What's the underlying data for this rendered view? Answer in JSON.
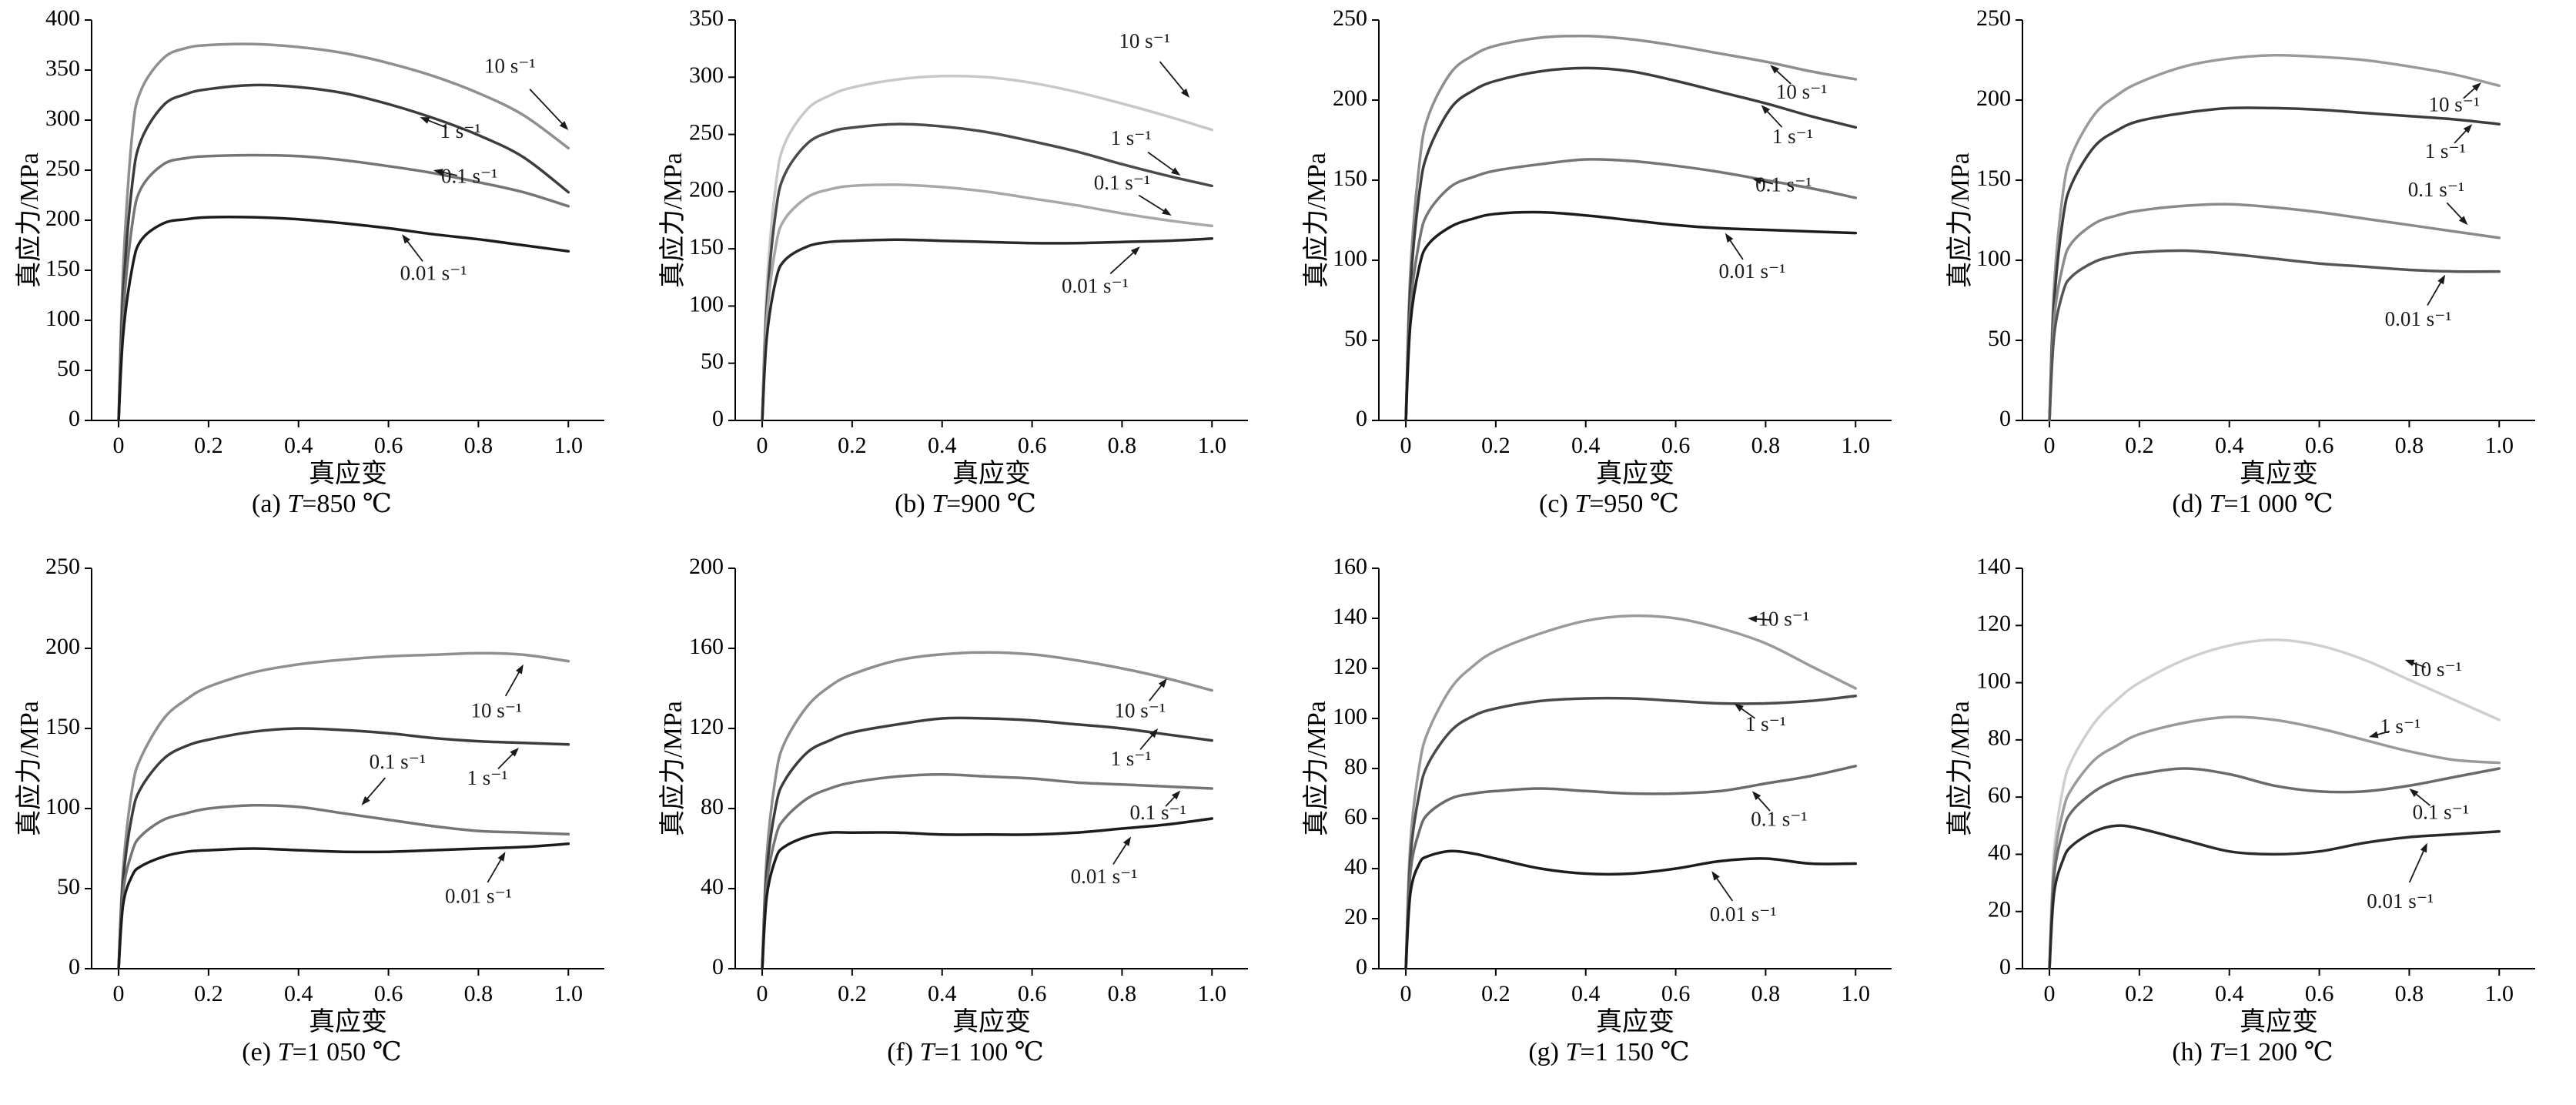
{
  "page": {
    "background": "#ffffff"
  },
  "shared": {
    "xlabel": "真应变",
    "ylabel": "真应力/MPa",
    "xlim": [
      -0.06,
      1.08
    ],
    "xticks": [
      0,
      0.2,
      0.4,
      0.6,
      0.8,
      1.0
    ],
    "xtick_labels": [
      "0",
      "0.2",
      "0.4",
      "0.6",
      "0.8",
      "1.0"
    ],
    "strain_x": [
      0,
      0.01,
      0.03,
      0.05,
      0.1,
      0.15,
      0.2,
      0.3,
      0.4,
      0.5,
      0.6,
      0.7,
      0.8,
      0.9,
      1.0
    ],
    "annotation_color": "#1a1a1a",
    "axis_color": "#000000"
  },
  "chart_data": [
    {
      "id": "a",
      "type": "line",
      "title": "(a) T=850 ℃",
      "caption_letter": "(a)",
      "caption_temp": "850",
      "caption_unit": "℃",
      "ylim": [
        0,
        400
      ],
      "ytick_step": 50,
      "series": [
        {
          "name": "10 s⁻¹",
          "color": "#8f8f8f",
          "y": [
            0,
            150,
            285,
            330,
            362,
            372,
            375,
            376,
            373,
            367,
            357,
            344,
            327,
            305,
            272
          ]
        },
        {
          "name": "1 s⁻¹",
          "color": "#3c3c3c",
          "y": [
            0,
            125,
            235,
            280,
            315,
            326,
            331,
            335,
            333,
            327,
            316,
            302,
            285,
            263,
            228
          ]
        },
        {
          "name": "0.1 s⁻¹",
          "color": "#757575",
          "y": [
            0,
            105,
            195,
            232,
            256,
            262,
            264,
            265,
            264,
            260,
            254,
            247,
            238,
            228,
            214
          ]
        },
        {
          "name": "0.01 s⁻¹",
          "color": "#1c1c1c",
          "y": [
            0,
            85,
            152,
            180,
            197,
            201,
            203,
            203,
            201,
            197,
            192,
            186,
            181,
            175,
            169
          ]
        }
      ],
      "annotations": [
        {
          "text": "10 s⁻¹",
          "tx": 0.87,
          "ty": 352,
          "ax": 1.0,
          "ay": 290
        },
        {
          "text": "1 s⁻¹",
          "tx": 0.76,
          "ty": 287,
          "ax": 0.67,
          "ay": 303
        },
        {
          "text": "0.1 s⁻¹",
          "tx": 0.78,
          "ty": 242,
          "ax": 0.7,
          "ay": 250
        },
        {
          "text": "0.01 s⁻¹",
          "tx": 0.7,
          "ty": 145,
          "ax": 0.63,
          "ay": 186
        }
      ]
    },
    {
      "id": "b",
      "type": "line",
      "title": "(b) T=900 ℃",
      "caption_letter": "(b)",
      "caption_temp": "900",
      "caption_unit": "℃",
      "ylim": [
        0,
        350
      ],
      "ytick_step": 50,
      "series": [
        {
          "name": "10 s⁻¹",
          "color": "#c8c8c8",
          "y": [
            0,
            115,
            205,
            242,
            272,
            284,
            291,
            298,
            301,
            300,
            295,
            287,
            277,
            266,
            254
          ]
        },
        {
          "name": "1 s⁻¹",
          "color": "#4a4a4a",
          "y": [
            0,
            100,
            182,
            215,
            242,
            252,
            256,
            259,
            257,
            252,
            244,
            235,
            224,
            214,
            205
          ]
        },
        {
          "name": "0.1 s⁻¹",
          "color": "#a8a8a8",
          "y": [
            0,
            88,
            152,
            176,
            195,
            202,
            205,
            206,
            204,
            200,
            194,
            188,
            181,
            175,
            170
          ]
        },
        {
          "name": "0.01 s⁻¹",
          "color": "#2a2a2a",
          "y": [
            0,
            72,
            122,
            140,
            152,
            156,
            157,
            158,
            157,
            156,
            155,
            155,
            156,
            157,
            159
          ]
        }
      ],
      "annotations": [
        {
          "text": "10 s⁻¹",
          "tx": 0.85,
          "ty": 330,
          "ax": 0.95,
          "ay": 282
        },
        {
          "text": "1 s⁻¹",
          "tx": 0.82,
          "ty": 245,
          "ax": 0.93,
          "ay": 214
        },
        {
          "text": "0.1 s⁻¹",
          "tx": 0.8,
          "ty": 206,
          "ax": 0.91,
          "ay": 179
        },
        {
          "text": "0.01 s⁻¹",
          "tx": 0.74,
          "ty": 116,
          "ax": 0.84,
          "ay": 152
        }
      ]
    },
    {
      "id": "c",
      "type": "line",
      "title": "(c) T=950 ℃",
      "caption_letter": "(c)",
      "caption_temp": "950",
      "caption_unit": "℃",
      "ylim": [
        0,
        250
      ],
      "ytick_step": 50,
      "series": [
        {
          "name": "10 s⁻¹",
          "color": "#8f8f8f",
          "y": [
            0,
            92,
            160,
            190,
            217,
            228,
            234,
            239,
            240,
            238,
            234,
            229,
            224,
            218,
            213
          ]
        },
        {
          "name": "1 s⁻¹",
          "color": "#3c3c3c",
          "y": [
            0,
            82,
            142,
            168,
            195,
            206,
            212,
            218,
            220,
            218,
            212,
            205,
            198,
            190,
            183
          ]
        },
        {
          "name": "0.1 s⁻¹",
          "color": "#757575",
          "y": [
            0,
            70,
            112,
            130,
            146,
            152,
            156,
            160,
            163,
            162,
            159,
            155,
            150,
            145,
            139
          ]
        },
        {
          "name": "0.01 s⁻¹",
          "color": "#1c1c1c",
          "y": [
            0,
            60,
            96,
            110,
            121,
            126,
            129,
            130,
            128,
            125,
            122,
            120,
            119,
            118,
            117
          ]
        }
      ],
      "annotations": [
        {
          "text": "10 s⁻¹",
          "tx": 0.88,
          "ty": 204,
          "ax": 0.81,
          "ay": 222
        },
        {
          "text": "1 s⁻¹",
          "tx": 0.86,
          "ty": 176,
          "ax": 0.79,
          "ay": 197
        },
        {
          "text": "0.1 s⁻¹",
          "tx": 0.84,
          "ty": 146,
          "ax": 0.77,
          "ay": 151
        },
        {
          "text": "0.01 s⁻¹",
          "tx": 0.77,
          "ty": 92,
          "ax": 0.71,
          "ay": 117
        }
      ]
    },
    {
      "id": "d",
      "type": "line",
      "title": "(d) T=1 000 ℃",
      "caption_letter": "(d)",
      "caption_temp": "1 000",
      "caption_unit": "℃",
      "ylim": [
        0,
        250
      ],
      "ytick_step": 50,
      "series": [
        {
          "name": "10 s⁻¹",
          "color": "#9a9a9a",
          "y": [
            0,
            82,
            142,
            166,
            191,
            203,
            211,
            221,
            226,
            228,
            227,
            225,
            221,
            216,
            209
          ]
        },
        {
          "name": "1 s⁻¹",
          "color": "#3c3c3c",
          "y": [
            0,
            72,
            126,
            148,
            171,
            181,
            187,
            192,
            195,
            195,
            194,
            192,
            190,
            188,
            185
          ]
        },
        {
          "name": "0.1 s⁻¹",
          "color": "#8a8a8a",
          "y": [
            0,
            62,
            97,
            111,
            123,
            128,
            131,
            134,
            135,
            133,
            130,
            126,
            122,
            118,
            114
          ]
        },
        {
          "name": "0.01 s⁻¹",
          "color": "#555555",
          "y": [
            0,
            52,
            80,
            90,
            99,
            103,
            105,
            106,
            104,
            101,
            98,
            96,
            94,
            93,
            93
          ]
        }
      ],
      "annotations": [
        {
          "text": "10 s⁻¹",
          "tx": 0.9,
          "ty": 196,
          "ax": 0.96,
          "ay": 211
        },
        {
          "text": "1 s⁻¹",
          "tx": 0.88,
          "ty": 167,
          "ax": 0.94,
          "ay": 185
        },
        {
          "text": "0.1 s⁻¹",
          "tx": 0.86,
          "ty": 143,
          "ax": 0.93,
          "ay": 122
        },
        {
          "text": "0.01 s⁻¹",
          "tx": 0.82,
          "ty": 62,
          "ax": 0.88,
          "ay": 91
        }
      ]
    },
    {
      "id": "e",
      "type": "line",
      "title": "(e) T=1 050 ℃",
      "caption_letter": "(e)",
      "caption_temp": "1 050",
      "caption_unit": "℃",
      "ylim": [
        0,
        250
      ],
      "ytick_step": 50,
      "series": [
        {
          "name": "10 s⁻¹",
          "color": "#8f8f8f",
          "y": [
            0,
            62,
            112,
            132,
            156,
            168,
            176,
            185,
            190,
            193,
            195,
            196,
            197,
            196,
            192
          ]
        },
        {
          "name": "1 s⁻¹",
          "color": "#3c3c3c",
          "y": [
            0,
            55,
            96,
            113,
            131,
            139,
            143,
            148,
            150,
            149,
            147,
            144,
            142,
            141,
            140
          ]
        },
        {
          "name": "0.1 s⁻¹",
          "color": "#757575",
          "y": [
            0,
            48,
            73,
            83,
            93,
            97,
            100,
            102,
            101,
            97,
            93,
            89,
            86,
            85,
            84
          ]
        },
        {
          "name": "0.01 s⁻¹",
          "color": "#1c1c1c",
          "y": [
            0,
            40,
            58,
            64,
            70,
            73,
            74,
            75,
            74,
            73,
            73,
            74,
            75,
            76,
            78
          ]
        }
      ],
      "annotations": [
        {
          "text": "10 s⁻¹",
          "tx": 0.84,
          "ty": 160,
          "ax": 0.9,
          "ay": 190
        },
        {
          "text": "1 s⁻¹",
          "tx": 0.82,
          "ty": 118,
          "ax": 0.89,
          "ay": 138
        },
        {
          "text": "0.1 s⁻¹",
          "tx": 0.62,
          "ty": 128,
          "ax": 0.54,
          "ay": 102
        },
        {
          "text": "0.01 s⁻¹",
          "tx": 0.8,
          "ty": 44,
          "ax": 0.86,
          "ay": 73
        }
      ]
    },
    {
      "id": "f",
      "type": "line",
      "title": "(f) T=1 100 ℃",
      "caption_letter": "(f)",
      "caption_temp": "1 100",
      "caption_unit": "℃",
      "ylim": [
        0,
        200
      ],
      "ytick_step": 40,
      "series": [
        {
          "name": "10 s⁻¹",
          "color": "#8f8f8f",
          "y": [
            0,
            56,
            96,
            113,
            131,
            141,
            147,
            154,
            157,
            158,
            157,
            154,
            150,
            145,
            139
          ]
        },
        {
          "name": "1 s⁻¹",
          "color": "#3c3c3c",
          "y": [
            0,
            48,
            81,
            94,
            108,
            114,
            118,
            122,
            125,
            125,
            124,
            122,
            120,
            117,
            114
          ]
        },
        {
          "name": "0.1 s⁻¹",
          "color": "#757575",
          "y": [
            0,
            42,
            66,
            75,
            85,
            90,
            93,
            96,
            97,
            96,
            95,
            93,
            92,
            91,
            90
          ]
        },
        {
          "name": "0.01 s⁻¹",
          "color": "#1c1c1c",
          "y": [
            0,
            36,
            55,
            61,
            66,
            68,
            68,
            68,
            67,
            67,
            67,
            68,
            70,
            72,
            75
          ]
        }
      ],
      "annotations": [
        {
          "text": "10 s⁻¹",
          "tx": 0.84,
          "ty": 128,
          "ax": 0.9,
          "ay": 145
        },
        {
          "text": "1 s⁻¹",
          "tx": 0.82,
          "ty": 104,
          "ax": 0.88,
          "ay": 120
        },
        {
          "text": "0.1 s⁻¹",
          "tx": 0.88,
          "ty": 77,
          "ax": 0.93,
          "ay": 89
        },
        {
          "text": "0.01 s⁻¹",
          "tx": 0.76,
          "ty": 45,
          "ax": 0.82,
          "ay": 66
        }
      ]
    },
    {
      "id": "g",
      "type": "line",
      "title": "(g) T=1 150 ℃",
      "caption_letter": "(g)",
      "caption_temp": "1 150",
      "caption_unit": "℃",
      "ylim": [
        0,
        160
      ],
      "ytick_step": 20,
      "series": [
        {
          "name": "10 s⁻¹",
          "color": "#9a9a9a",
          "y": [
            0,
            50,
            81,
            95,
            112,
            121,
            127,
            134,
            139,
            141,
            140,
            136,
            130,
            121,
            112
          ]
        },
        {
          "name": "1 s⁻¹",
          "color": "#4a4a4a",
          "y": [
            0,
            44,
            70,
            82,
            95,
            101,
            104,
            107,
            108,
            108,
            107,
            106,
            106,
            107,
            109
          ]
        },
        {
          "name": "0.1 s⁻¹",
          "color": "#6a6a6a",
          "y": [
            0,
            38,
            55,
            62,
            68,
            70,
            71,
            72,
            71,
            70,
            70,
            71,
            74,
            77,
            81
          ]
        },
        {
          "name": "0.01 s⁻¹",
          "color": "#1c1c1c",
          "y": [
            0,
            30,
            42,
            45,
            47,
            46,
            44,
            40,
            38,
            38,
            40,
            43,
            44,
            42,
            42
          ]
        }
      ],
      "annotations": [
        {
          "text": "10 s⁻¹",
          "tx": 0.84,
          "ty": 139,
          "ax": 0.76,
          "ay": 140
        },
        {
          "text": "1 s⁻¹",
          "tx": 0.8,
          "ty": 97,
          "ax": 0.73,
          "ay": 106
        },
        {
          "text": "0.1 s⁻¹",
          "tx": 0.83,
          "ty": 59,
          "ax": 0.77,
          "ay": 71
        },
        {
          "text": "0.01 s⁻¹",
          "tx": 0.75,
          "ty": 21,
          "ax": 0.68,
          "ay": 39
        }
      ]
    },
    {
      "id": "h",
      "type": "line",
      "title": "(h) T=1 200 ℃",
      "caption_letter": "(h)",
      "caption_temp": "1 200",
      "caption_unit": "℃",
      "ylim": [
        0,
        140
      ],
      "ytick_step": 20,
      "series": [
        {
          "name": "10 s⁻¹",
          "color": "#cfcfcf",
          "y": [
            0,
            40,
            63,
            73,
            86,
            94,
            100,
            108,
            113,
            115,
            113,
            108,
            101,
            94,
            87
          ]
        },
        {
          "name": "1 s⁻¹",
          "color": "#9a9a9a",
          "y": [
            0,
            36,
            55,
            63,
            73,
            78,
            82,
            86,
            88,
            87,
            84,
            80,
            76,
            73,
            72
          ]
        },
        {
          "name": "0.1 s⁻¹",
          "color": "#6a6a6a",
          "y": [
            0,
            32,
            48,
            55,
            62,
            66,
            68,
            70,
            68,
            64,
            62,
            62,
            64,
            67,
            70
          ]
        },
        {
          "name": "0.01 s⁻¹",
          "color": "#2a2a2a",
          "y": [
            0,
            26,
            38,
            43,
            48,
            50,
            49,
            45,
            41,
            40,
            41,
            44,
            46,
            47,
            48
          ]
        }
      ],
      "annotations": [
        {
          "text": "10 s⁻¹",
          "tx": 0.86,
          "ty": 104,
          "ax": 0.79,
          "ay": 108
        },
        {
          "text": "1 s⁻¹",
          "tx": 0.78,
          "ty": 84,
          "ax": 0.71,
          "ay": 81
        },
        {
          "text": "0.1 s⁻¹",
          "tx": 0.87,
          "ty": 54,
          "ax": 0.8,
          "ay": 63
        },
        {
          "text": "0.01 s⁻¹",
          "tx": 0.78,
          "ty": 23,
          "ax": 0.84,
          "ay": 44
        }
      ]
    }
  ]
}
